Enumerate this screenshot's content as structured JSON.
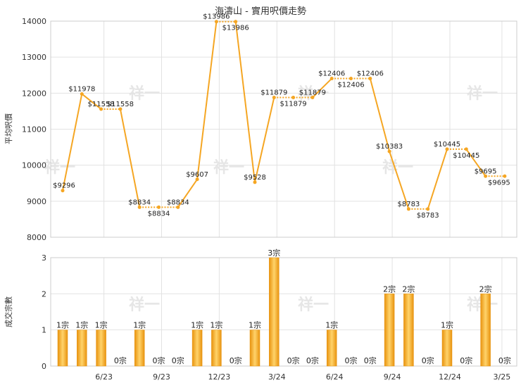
{
  "chart_data": [
    {
      "type": "line",
      "title": "海濤山 - 實用呎價走勢",
      "ylabel": "平均呎價",
      "ylim": [
        8000,
        14000
      ],
      "yticks": [
        8000,
        9000,
        10000,
        11000,
        12000,
        13000,
        14000
      ],
      "grid": true,
      "color": "#f5a623",
      "series": [
        {
          "values": [
            9296,
            11978,
            11558,
            11558,
            8834,
            8834,
            8834,
            9607,
            13986,
            13986,
            9528,
            11879,
            11879,
            11879,
            12406,
            12406,
            12406,
            10383,
            8783,
            8783,
            10445,
            10445,
            9695,
            9695
          ],
          "labels": [
            "$9296",
            "$11978",
            "$11558",
            "$11558",
            "$8834",
            "$8834",
            "$8834",
            "$9607",
            "$13986",
            "$13986",
            "$9528",
            "$11879",
            "$11879",
            "$11879",
            "$12406",
            "$12406",
            "$12406",
            "$10383",
            "$8783",
            "$8783",
            "$10445",
            "$10445",
            "$9695",
            "$9695"
          ],
          "dotted_segments": [
            2,
            4,
            5,
            8,
            11,
            12,
            14,
            15,
            18,
            20,
            22
          ]
        }
      ]
    },
    {
      "type": "bar",
      "ylabel": "成交宗數",
      "ylim": [
        0,
        3
      ],
      "yticks": [
        0,
        1,
        2,
        3
      ],
      "grid": true,
      "color": "#f5a623",
      "xticks": [
        "6/23",
        "9/23",
        "12/23",
        "3/24",
        "6/24",
        "9/24",
        "12/24",
        "3/25"
      ],
      "values": [
        1,
        1,
        1,
        0,
        1,
        0,
        0,
        1,
        1,
        0,
        1,
        3,
        0,
        0,
        1,
        0,
        0,
        2,
        2,
        0,
        1,
        0,
        2,
        0
      ],
      "labels": [
        "1宗",
        "1宗",
        "1宗",
        "0宗",
        "1宗",
        "0宗",
        "0宗",
        "1宗",
        "1宗",
        "0宗",
        "1宗",
        "3宗",
        "0宗",
        "0宗",
        "1宗",
        "0宗",
        "0宗",
        "2宗",
        "2宗",
        "0宗",
        "1宗",
        "0宗",
        "2宗",
        "0宗"
      ]
    }
  ],
  "watermark": "祥一"
}
